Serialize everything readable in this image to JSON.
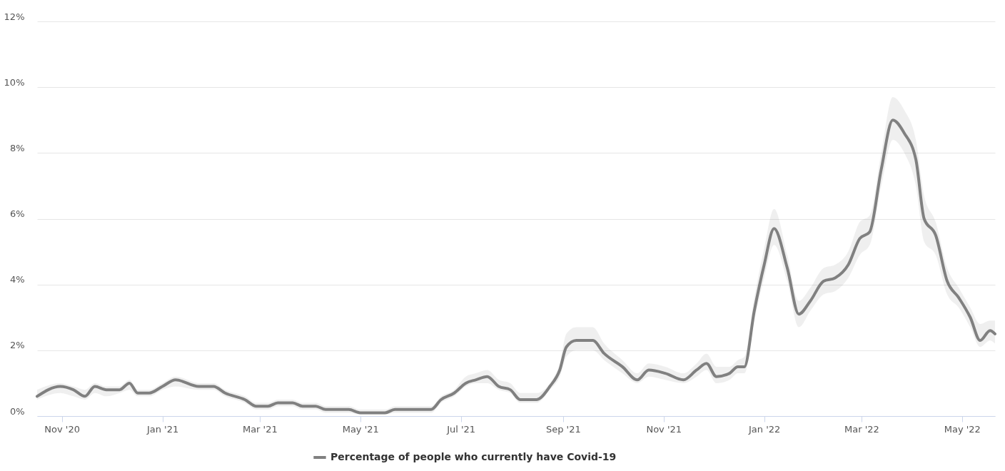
{
  "chart_data": {
    "type": "line",
    "x": [
      "2020-10-17",
      "2020-10-31",
      "2020-11-08",
      "2020-11-15",
      "2020-11-21",
      "2020-11-28",
      "2020-12-06",
      "2020-12-12",
      "2020-12-17",
      "2020-12-24",
      "2021-01-01",
      "2021-01-09",
      "2021-01-23",
      "2021-02-01",
      "2021-02-08",
      "2021-02-20",
      "2021-02-27",
      "2021-03-06",
      "2021-03-12",
      "2021-03-21",
      "2021-03-27",
      "2021-04-04",
      "2021-04-10",
      "2021-04-24",
      "2021-05-01",
      "2021-05-10",
      "2021-05-16",
      "2021-05-22",
      "2021-06-13",
      "2021-06-19",
      "2021-06-27",
      "2021-07-04",
      "2021-07-10",
      "2021-07-17",
      "2021-07-24",
      "2021-07-31",
      "2021-08-06",
      "2021-08-16",
      "2021-08-24",
      "2021-08-30",
      "2021-09-03",
      "2021-09-09",
      "2021-09-19",
      "2021-09-26",
      "2021-10-07",
      "2021-10-16",
      "2021-10-23",
      "2021-11-02",
      "2021-11-13",
      "2021-11-21",
      "2021-11-27",
      "2021-12-03",
      "2021-12-11",
      "2021-12-16",
      "2021-12-20",
      "2021-12-26",
      "2022-01-01",
      "2022-01-07",
      "2022-01-15",
      "2022-01-22",
      "2022-01-29",
      "2022-02-06",
      "2022-02-13",
      "2022-02-21",
      "2022-02-28",
      "2022-03-06",
      "2022-03-13",
      "2022-03-20",
      "2022-03-27",
      "2022-04-03",
      "2022-04-08",
      "2022-04-15",
      "2022-04-22",
      "2022-04-29",
      "2022-05-06",
      "2022-05-12",
      "2022-05-18",
      "2022-05-21"
    ],
    "series": [
      {
        "name": "Percentage of people who currently have Covid-19",
        "color": "#808080",
        "values": [
          0.6,
          0.9,
          0.8,
          0.6,
          0.9,
          0.8,
          0.8,
          1.0,
          0.7,
          0.7,
          0.9,
          1.1,
          0.9,
          0.9,
          0.7,
          0.5,
          0.3,
          0.3,
          0.4,
          0.4,
          0.3,
          0.3,
          0.2,
          0.2,
          0.1,
          0.1,
          0.1,
          0.2,
          0.2,
          0.5,
          0.7,
          1.0,
          1.1,
          1.2,
          0.9,
          0.8,
          0.5,
          0.5,
          0.9,
          1.4,
          2.1,
          2.3,
          2.3,
          1.9,
          1.5,
          1.1,
          1.4,
          1.3,
          1.1,
          1.4,
          1.6,
          1.2,
          1.3,
          1.5,
          1.5,
          3.2,
          4.6,
          5.7,
          4.5,
          3.1,
          3.5,
          4.1,
          4.2,
          4.6,
          5.4,
          5.6,
          7.5,
          9.0,
          8.6,
          7.8,
          6.0,
          5.5,
          4.1,
          3.6,
          3.0,
          2.3,
          2.6,
          2.5
        ],
        "lower": [
          0.5,
          0.7,
          0.6,
          0.5,
          0.7,
          0.6,
          0.7,
          0.8,
          0.6,
          0.6,
          0.8,
          0.9,
          0.8,
          0.8,
          0.6,
          0.4,
          0.2,
          0.2,
          0.3,
          0.3,
          0.2,
          0.2,
          0.1,
          0.1,
          0.05,
          0.05,
          0.05,
          0.1,
          0.1,
          0.4,
          0.6,
          0.9,
          1.0,
          1.0,
          0.8,
          0.7,
          0.4,
          0.4,
          0.8,
          1.2,
          1.8,
          2.0,
          2.0,
          1.7,
          1.3,
          1.0,
          1.2,
          1.1,
          1.0,
          1.2,
          1.4,
          1.0,
          1.1,
          1.3,
          1.3,
          2.9,
          4.2,
          5.2,
          4.1,
          2.7,
          3.2,
          3.7,
          3.8,
          4.2,
          4.9,
          5.2,
          7.0,
          8.4,
          8.0,
          7.0,
          5.3,
          4.9,
          3.7,
          3.3,
          2.7,
          2.1,
          2.3,
          2.2
        ],
        "upper": [
          0.8,
          1.0,
          0.9,
          0.8,
          1.0,
          0.9,
          0.9,
          1.1,
          0.8,
          0.8,
          1.0,
          1.2,
          1.0,
          1.0,
          0.8,
          0.6,
          0.4,
          0.4,
          0.5,
          0.5,
          0.4,
          0.4,
          0.3,
          0.3,
          0.2,
          0.2,
          0.2,
          0.3,
          0.3,
          0.6,
          0.8,
          1.2,
          1.3,
          1.4,
          1.1,
          1.0,
          0.7,
          0.7,
          1.0,
          1.6,
          2.5,
          2.7,
          2.7,
          2.2,
          1.7,
          1.3,
          1.6,
          1.5,
          1.3,
          1.6,
          1.9,
          1.5,
          1.5,
          1.7,
          1.8,
          3.6,
          5.1,
          6.3,
          4.9,
          3.5,
          3.9,
          4.5,
          4.6,
          5.0,
          5.9,
          6.1,
          8.0,
          9.7,
          9.3,
          8.4,
          6.7,
          5.9,
          4.5,
          3.9,
          3.3,
          2.8,
          2.9,
          2.9
        ]
      }
    ],
    "xlim": [
      "2020-10-17",
      "2022-05-21"
    ],
    "xticks": [
      {
        "value": "2020-11-01",
        "label": "Nov '20"
      },
      {
        "value": "2021-01-01",
        "label": "Jan '21"
      },
      {
        "value": "2021-03-01",
        "label": "Mar '21"
      },
      {
        "value": "2021-05-01",
        "label": "May '21"
      },
      {
        "value": "2021-07-01",
        "label": "Jul '21"
      },
      {
        "value": "2021-09-01",
        "label": "Sep '21"
      },
      {
        "value": "2021-11-01",
        "label": "Nov '21"
      },
      {
        "value": "2022-01-01",
        "label": "Jan '22"
      },
      {
        "value": "2022-03-01",
        "label": "Mar '22"
      },
      {
        "value": "2022-05-01",
        "label": "May '22"
      }
    ],
    "ylim": [
      0,
      12
    ],
    "yticks": [
      {
        "value": 0,
        "label": "0%"
      },
      {
        "value": 2,
        "label": "2%"
      },
      {
        "value": 4,
        "label": "4%"
      },
      {
        "value": 6,
        "label": "6%"
      },
      {
        "value": 8,
        "label": "8%"
      },
      {
        "value": 10,
        "label": "10%"
      },
      {
        "value": 12,
        "label": "12%"
      }
    ],
    "grid": "y",
    "legend": "bottom",
    "marker": "none",
    "line_style": "solid"
  }
}
